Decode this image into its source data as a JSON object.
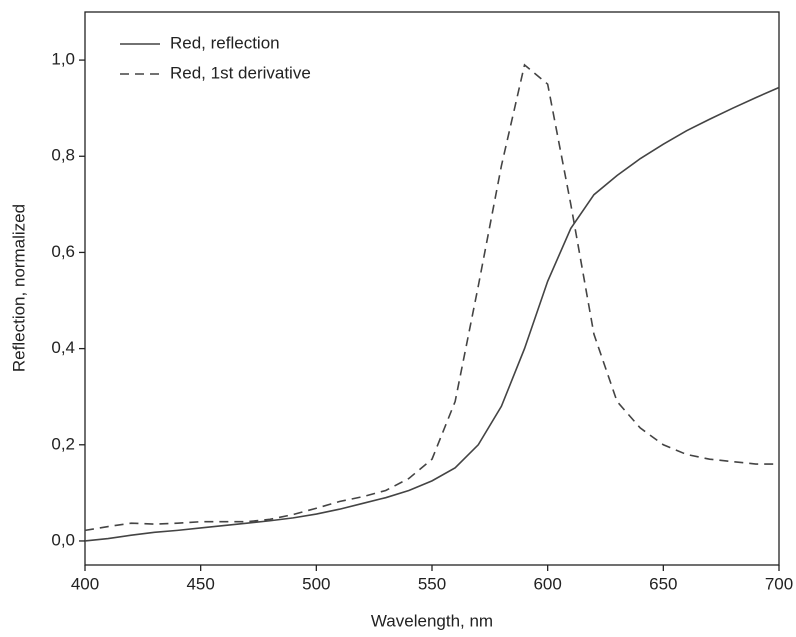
{
  "chart_data": {
    "type": "line",
    "x_label": "Wavelength, nm",
    "y_label": "Reflection, normalized",
    "x": [
      400,
      410,
      420,
      430,
      440,
      450,
      460,
      470,
      480,
      490,
      500,
      510,
      520,
      530,
      540,
      550,
      560,
      570,
      580,
      590,
      600,
      610,
      620,
      630,
      640,
      650,
      660,
      670,
      680,
      690,
      700
    ],
    "series": [
      {
        "name": "Red, reflection",
        "color": "#444444",
        "dash": "solid",
        "values": [
          0.0,
          0.005,
          0.012,
          0.018,
          0.022,
          0.027,
          0.032,
          0.037,
          0.042,
          0.048,
          0.056,
          0.066,
          0.078,
          0.09,
          0.105,
          0.125,
          0.152,
          0.2,
          0.28,
          0.4,
          0.54,
          0.65,
          0.72,
          0.76,
          0.795,
          0.825,
          0.853,
          0.877,
          0.9,
          0.922,
          0.943
        ]
      },
      {
        "name": "Red, 1st derivative",
        "color": "#444444",
        "dash": "dashed",
        "values": [
          0.022,
          0.03,
          0.037,
          0.035,
          0.037,
          0.04,
          0.04,
          0.04,
          0.045,
          0.055,
          0.068,
          0.082,
          0.092,
          0.105,
          0.13,
          0.17,
          0.29,
          0.53,
          0.78,
          0.99,
          0.95,
          0.7,
          0.43,
          0.29,
          0.235,
          0.2,
          0.18,
          0.17,
          0.165,
          0.16,
          0.16
        ]
      }
    ],
    "xlim": [
      400,
      700
    ],
    "xticks": [
      400,
      450,
      500,
      550,
      600,
      650,
      700
    ],
    "ylim": [
      -0.05,
      1.1
    ],
    "yticks": [
      {
        "value": 0,
        "label": "0,0"
      },
      {
        "value": 0.2,
        "label": "0,2"
      },
      {
        "value": 0.4,
        "label": "0,4"
      },
      {
        "value": 0.6,
        "label": "0,6"
      },
      {
        "value": 0.8,
        "label": "0,8"
      },
      {
        "value": 1.0,
        "label": "1,0"
      }
    ],
    "grid": false,
    "legend": "upper-left"
  }
}
